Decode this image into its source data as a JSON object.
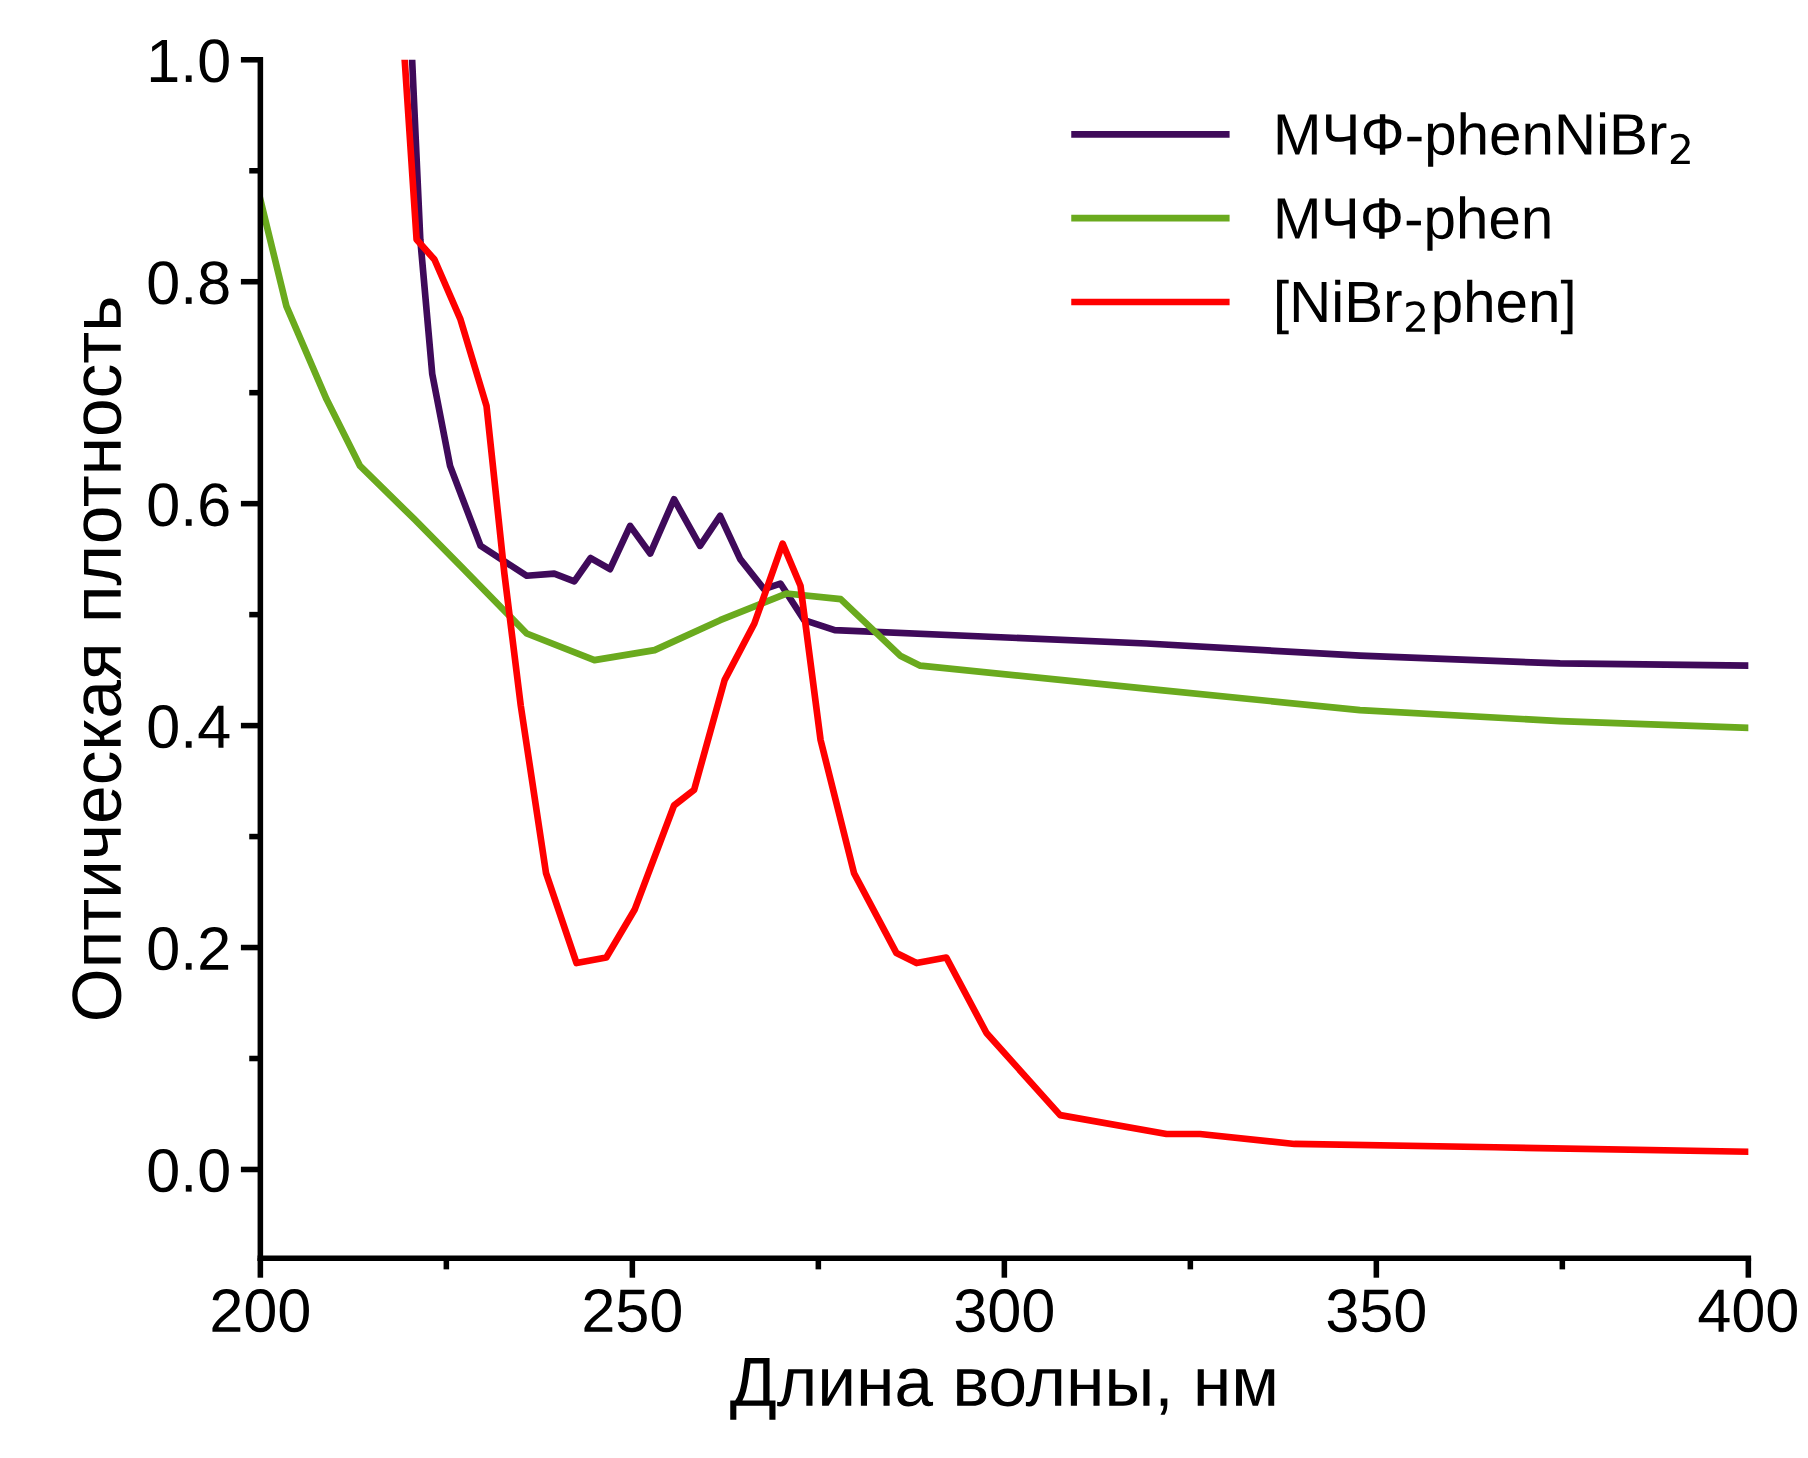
{
  "chart_data": {
    "type": "line",
    "xlabel": "Длина волны, нм",
    "ylabel": "Оптическая плотность",
    "xlim": [
      200,
      400
    ],
    "ylim": [
      -0.08,
      1.0
    ],
    "xticks": [
      200,
      250,
      300,
      350,
      400
    ],
    "yticks": [
      {
        "value": 0,
        "label": "0.0"
      },
      0.2,
      0.4,
      0.6,
      0.8,
      {
        "value": 1,
        "label": "1.0"
      }
    ],
    "grid": false,
    "legend": "top right",
    "line_style": "solid",
    "marker": "none",
    "series": [
      {
        "name": "МЧФ-phenNiBr$_{2}$",
        "color": "#3f0a5a",
        "x": [
          220.4,
          221.5,
          223.1,
          225.5,
          229.6,
          235.8,
          239.5,
          242.2,
          244.4,
          247,
          249.7,
          252.4,
          255.6,
          259.1,
          261.8,
          264.5,
          267.7,
          269.9,
          273.1,
          277.2,
          319.1,
          347.8,
          374.7,
          400
        ],
        "values": [
          1.0,
          0.838,
          0.717,
          0.634,
          0.562,
          0.535,
          0.537,
          0.53,
          0.551,
          0.541,
          0.58,
          0.555,
          0.604,
          0.562,
          0.589,
          0.55,
          0.523,
          0.528,
          0.495,
          0.486,
          0.474,
          0.463,
          0.456,
          0.454
        ]
      },
      {
        "name": "МЧФ-phen",
        "color": "#6aaa1e",
        "x": [
          200,
          203.5,
          208.9,
          213.4,
          220.7,
          226.9,
          235.8,
          244.9,
          253,
          261.8,
          270.7,
          278,
          286,
          288.7,
          321,
          347.8,
          374.7,
          400
        ],
        "values": [
          0.874,
          0.778,
          0.694,
          0.634,
          0.586,
          0.544,
          0.483,
          0.459,
          0.468,
          0.495,
          0.519,
          0.514,
          0.463,
          0.454,
          0.432,
          0.414,
          0.404,
          0.398
        ]
      },
      {
        "name": "[NiBr$_{2}$phen]",
        "color": "#ff0000",
        "x": [
          219.4,
          221,
          223.4,
          226.9,
          230.4,
          232.8,
          235,
          238.4,
          242.5,
          246.5,
          250.3,
          255.6,
          258.3,
          262.4,
          266.4,
          270.2,
          272.6,
          275.3,
          279.8,
          285.5,
          288.2,
          292.2,
          297.6,
          307.5,
          321.8,
          326.3,
          339,
          365.9,
          400
        ],
        "values": [
          1.0,
          0.838,
          0.82,
          0.766,
          0.688,
          0.537,
          0.418,
          0.267,
          0.186,
          0.191,
          0.234,
          0.328,
          0.342,
          0.441,
          0.492,
          0.564,
          0.526,
          0.387,
          0.267,
          0.195,
          0.186,
          0.191,
          0.123,
          0.049,
          0.032,
          0.032,
          0.023,
          0.02,
          0.016
        ]
      }
    ]
  }
}
